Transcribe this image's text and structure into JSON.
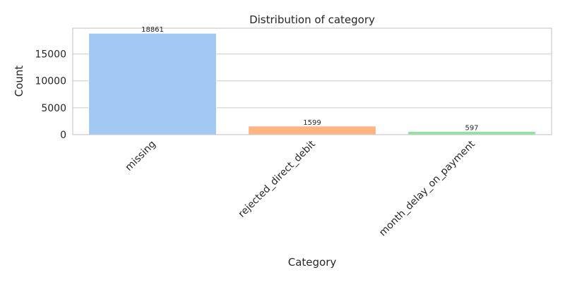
{
  "chart_data": {
    "type": "bar",
    "title": "Distribution of category",
    "xlabel": "Category",
    "ylabel": "Count",
    "categories": [
      "missing",
      "rejected_direct_debit",
      "month_delay_on_payment"
    ],
    "values": [
      18861,
      1599,
      597
    ],
    "data_labels": [
      "18861",
      "1599",
      "597"
    ],
    "colors": [
      "#a1c9f4",
      "#ffb482",
      "#8de5a1"
    ],
    "yticks": [
      0,
      5000,
      10000,
      15000
    ],
    "ytick_labels": [
      "0",
      "5000",
      "10000",
      "15000"
    ],
    "ylim": [
      0,
      19800
    ],
    "grid": true,
    "legend": "none"
  }
}
